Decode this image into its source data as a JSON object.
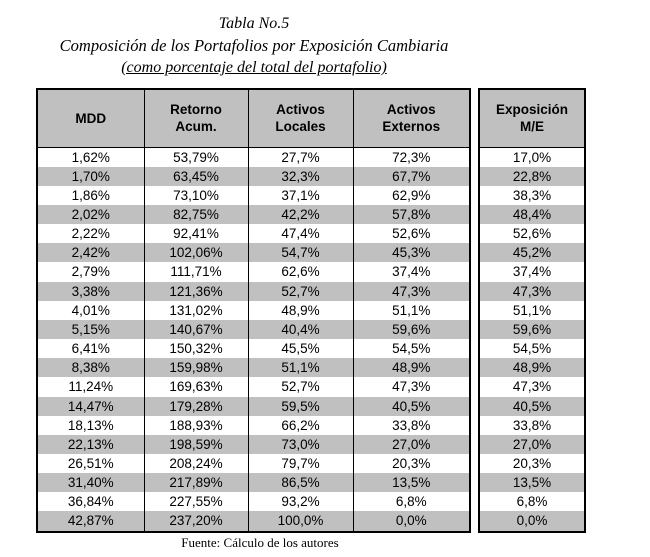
{
  "title": {
    "line1": "Tabla No.5",
    "line2": "Composición de los Portafolios por Exposición Cambiaria",
    "line3": "(como porcentaje del total del portafolio)"
  },
  "main_table": {
    "headers": [
      "MDD",
      "Retorno\nAcum.",
      "Activos\nLocales",
      "Activos\nExternos"
    ],
    "rows": [
      [
        "1,62%",
        "53,79%",
        "27,7%",
        "72,3%"
      ],
      [
        "1,70%",
        "63,45%",
        "32,3%",
        "67,7%"
      ],
      [
        "1,86%",
        "73,10%",
        "37,1%",
        "62,9%"
      ],
      [
        "2,02%",
        "82,75%",
        "42,2%",
        "57,8%"
      ],
      [
        "2,22%",
        "92,41%",
        "47,4%",
        "52,6%"
      ],
      [
        "2,42%",
        "102,06%",
        "54,7%",
        "45,3%"
      ],
      [
        "2,79%",
        "111,71%",
        "62,6%",
        "37,4%"
      ],
      [
        "3,38%",
        "121,36%",
        "52,7%",
        "47,3%"
      ],
      [
        "4,01%",
        "131,02%",
        "48,9%",
        "51,1%"
      ],
      [
        "5,15%",
        "140,67%",
        "40,4%",
        "59,6%"
      ],
      [
        "6,41%",
        "150,32%",
        "45,5%",
        "54,5%"
      ],
      [
        "8,38%",
        "159,98%",
        "51,1%",
        "48,9%"
      ],
      [
        "11,24%",
        "169,63%",
        "52,7%",
        "47,3%"
      ],
      [
        "14,47%",
        "179,28%",
        "59,5%",
        "40,5%"
      ],
      [
        "18,13%",
        "188,93%",
        "66,2%",
        "33,8%"
      ],
      [
        "22,13%",
        "198,59%",
        "73,0%",
        "27,0%"
      ],
      [
        "26,51%",
        "208,24%",
        "79,7%",
        "20,3%"
      ],
      [
        "31,40%",
        "217,89%",
        "86,5%",
        "13,5%"
      ],
      [
        "36,84%",
        "227,55%",
        "93,2%",
        "6,8%"
      ],
      [
        "42,87%",
        "237,20%",
        "100,0%",
        "0,0%"
      ]
    ]
  },
  "side_table": {
    "header": "Exposición\nM/E",
    "values": [
      "17,0%",
      "22,8%",
      "38,3%",
      "48,4%",
      "52,6%",
      "45,2%",
      "37,4%",
      "47,3%",
      "51,1%",
      "59,6%",
      "54,5%",
      "48,9%",
      "47,3%",
      "40,5%",
      "33,8%",
      "27,0%",
      "20,3%",
      "13,5%",
      "6,8%",
      "0,0%"
    ]
  },
  "footer": "Fuente: Cálculo de los autores",
  "colors": {
    "header_bg": "#c0c0c0",
    "stripe_bg": "#c0c0c0",
    "border": "#000000",
    "text": "#000000"
  }
}
